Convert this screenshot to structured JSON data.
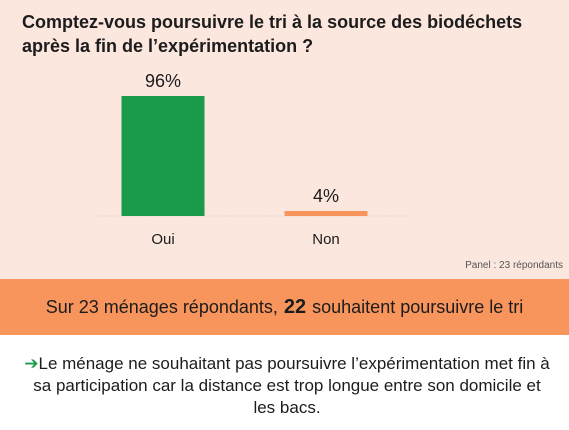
{
  "question": "Comptez-vous poursuivre le tri à la source des biodéchets après la fin de l’expérimentation ?",
  "respondents_note": "Panel : 23 répondants",
  "chart_data": {
    "type": "bar",
    "title": "Comptez-vous poursuivre le tri à la source des biodéchets après la fin de l’expérimentation ?",
    "categories": [
      "Oui",
      "Non"
    ],
    "values": [
      96,
      4
    ],
    "value_labels": [
      "96%",
      "4%"
    ],
    "unit": "%",
    "colors": [
      "#1a9a4b",
      "#f8955c"
    ],
    "ylim": [
      0,
      100
    ],
    "grid": false,
    "legend": "none"
  },
  "banner": {
    "prefix": "Sur 23 ménages répondants,",
    "number": "22",
    "suffix": "souhaitent poursuivre le tri"
  },
  "note": {
    "arrow": "➔",
    "text": "Le ménage ne souhaitant pas poursuivre l’expérimentation met fin à sa participation car la distance est trop longue entre son domicile et les bacs."
  },
  "colors": {
    "panel_bg": "#fbe7de",
    "banner_bg": "#f8955c",
    "axis": "#d9cfc9"
  }
}
